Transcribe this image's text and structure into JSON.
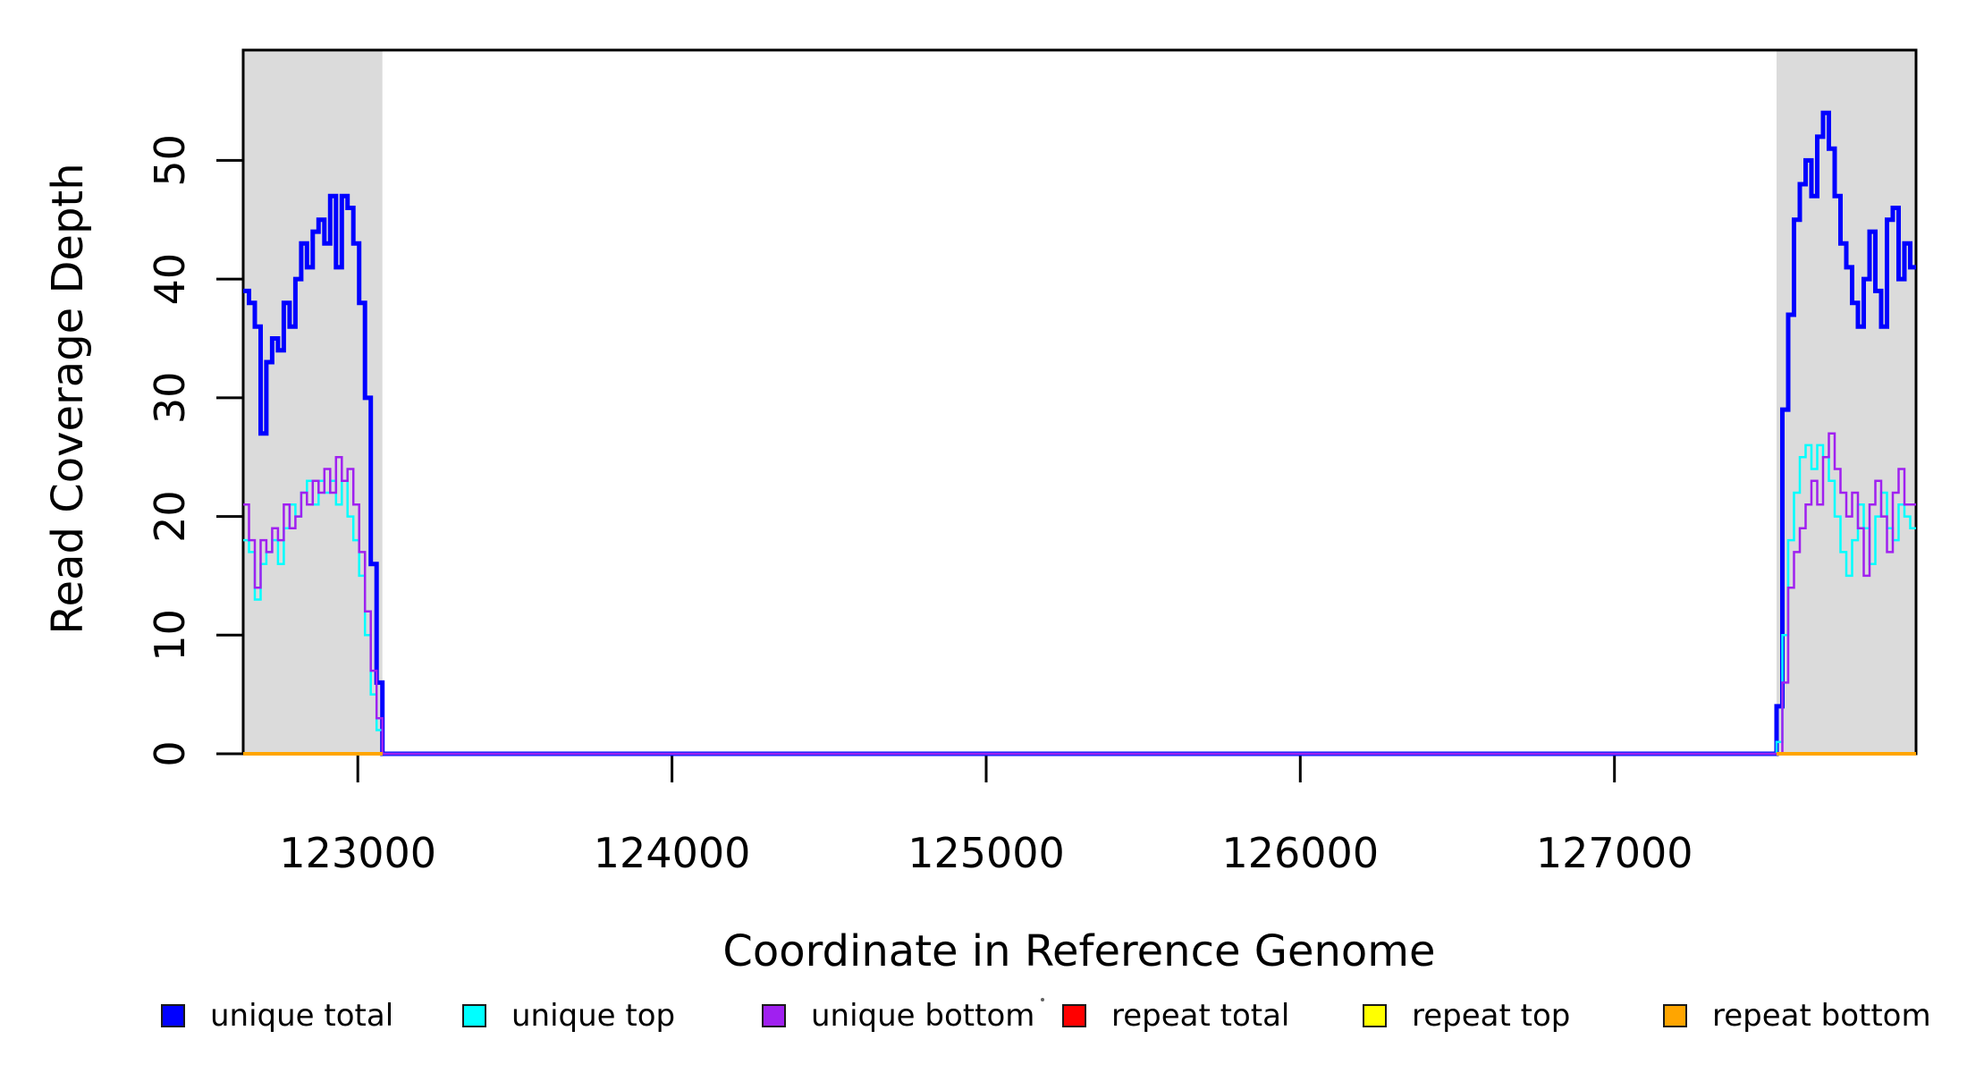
{
  "chart_data": {
    "type": "line",
    "step": true,
    "title": "",
    "xlabel": "Coordinate in Reference Genome",
    "ylabel": "Read Coverage Depth",
    "xlim": [
      122635,
      127960
    ],
    "ylim": [
      0,
      59.3
    ],
    "xticks": [
      123000,
      124000,
      125000,
      126000,
      127000
    ],
    "yticks": [
      0,
      10,
      20,
      30,
      40,
      50
    ],
    "grid": false,
    "legend_position": "bottom",
    "background": "#ffffff",
    "shaded_regions": [
      {
        "x0": 122635,
        "x1": 123078,
        "color": "#dbdbdb"
      },
      {
        "x0": 127516,
        "x1": 127960,
        "color": "#dbdbdb"
      }
    ],
    "series": [
      {
        "name": "unique total",
        "color": "#0000FF",
        "width": 5,
        "segments": [
          {
            "x0": 122635,
            "x1": 123078,
            "values": [
              39,
              38,
              36,
              27,
              33,
              35,
              34,
              38,
              36,
              40,
              43,
              41,
              44,
              45,
              43,
              47,
              41,
              47,
              46,
              43,
              38,
              30,
              16,
              6
            ]
          },
          {
            "x0": 123078,
            "x1": 127516,
            "values": [
              0
            ]
          },
          {
            "x0": 127516,
            "x1": 127960,
            "values": [
              4,
              29,
              37,
              45,
              48,
              50,
              47,
              52,
              54,
              51,
              47,
              43,
              41,
              38,
              36,
              40,
              44,
              39,
              36,
              45,
              46,
              40,
              43,
              41
            ]
          }
        ]
      },
      {
        "name": "unique top",
        "color": "#00FFFF",
        "width": 2.5,
        "segments": [
          {
            "x0": 122635,
            "x1": 123078,
            "values": [
              18,
              17,
              13,
              16,
              17,
              18,
              16,
              19,
              21,
              20,
              22,
              23,
              21,
              23,
              22,
              23,
              21,
              23,
              20,
              18,
              15,
              10,
              5,
              2
            ]
          },
          {
            "x0": 123078,
            "x1": 127516,
            "values": [
              0
            ]
          },
          {
            "x0": 127516,
            "x1": 127960,
            "values": [
              1,
              10,
              18,
              22,
              25,
              26,
              24,
              26,
              25,
              23,
              20,
              17,
              15,
              18,
              21,
              19,
              16,
              20,
              22,
              19,
              18,
              21,
              20,
              19
            ]
          }
        ]
      },
      {
        "name": "unique bottom",
        "color": "#A020F0",
        "width": 2.5,
        "segments": [
          {
            "x0": 122635,
            "x1": 123078,
            "values": [
              21,
              18,
              14,
              18,
              17,
              19,
              18,
              21,
              19,
              20,
              22,
              21,
              23,
              22,
              24,
              22,
              25,
              23,
              24,
              21,
              17,
              12,
              7,
              3
            ]
          },
          {
            "x0": 123078,
            "x1": 127516,
            "values": [
              0
            ]
          },
          {
            "x0": 127516,
            "x1": 127960,
            "values": [
              0,
              6,
              14,
              17,
              19,
              21,
              23,
              21,
              25,
              27,
              24,
              22,
              20,
              22,
              19,
              15,
              21,
              23,
              20,
              17,
              22,
              24,
              21,
              21
            ]
          }
        ]
      },
      {
        "name": "repeat total",
        "color": "#FF0000",
        "width": 4,
        "segments": [
          {
            "x0": 122635,
            "x1": 123078,
            "values": [
              0
            ]
          },
          {
            "x0": 127516,
            "x1": 127960,
            "values": [
              0
            ]
          }
        ]
      },
      {
        "name": "repeat top",
        "color": "#FFFF00",
        "width": 4,
        "segments": [
          {
            "x0": 122635,
            "x1": 123078,
            "values": [
              0
            ]
          },
          {
            "x0": 127516,
            "x1": 127960,
            "values": [
              0
            ]
          }
        ]
      },
      {
        "name": "repeat bottom",
        "color": "#FFA500",
        "width": 4,
        "segments": [
          {
            "x0": 122635,
            "x1": 123078,
            "values": [
              0
            ]
          },
          {
            "x0": 127516,
            "x1": 127960,
            "values": [
              0
            ]
          }
        ]
      }
    ]
  },
  "legend": {
    "items": [
      {
        "label": "unique total",
        "color": "#0000FF"
      },
      {
        "label": "unique top",
        "color": "#00FFFF"
      },
      {
        "label": "unique bottom",
        "color": "#A020F0"
      },
      {
        "label": "repeat total",
        "color": "#FF0000"
      },
      {
        "label": "repeat top",
        "color": "#FFFF00"
      },
      {
        "label": "repeat bottom",
        "color": "#FFA500"
      }
    ]
  }
}
